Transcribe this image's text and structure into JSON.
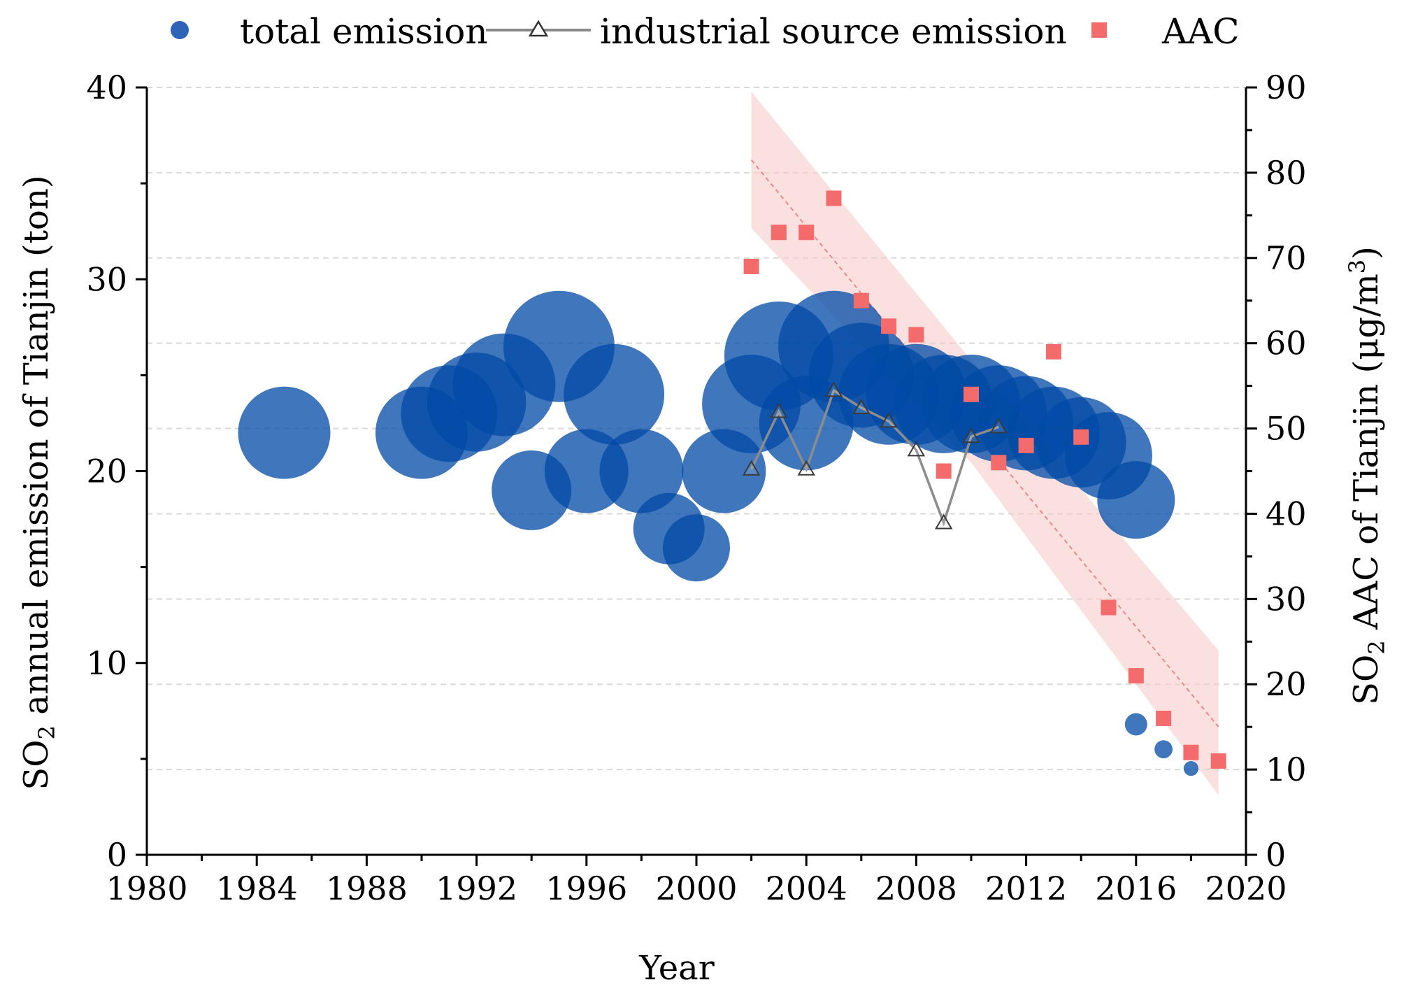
{
  "chart_data": {
    "type": "scatter",
    "xlabel": "Year",
    "ylabel_left": {
      "main": "SO",
      "sub": "2",
      "rest": "  annual emission of Tianjin (ton)"
    },
    "ylabel_right": {
      "main": "SO",
      "sub": "2",
      "mid": " AAC of Tianjin (μg/m",
      "sup": "3",
      "end": ")"
    },
    "xlim": [
      1980,
      2020
    ],
    "ylim_left": [
      0,
      40
    ],
    "ylim_right": [
      0,
      90
    ],
    "x_ticks": [
      1980,
      1984,
      1988,
      1992,
      1996,
      2000,
      2004,
      2008,
      2012,
      2016,
      2020
    ],
    "y_ticks_left": [
      0,
      10,
      20,
      30,
      40
    ],
    "y_ticks_right": [
      0,
      10,
      20,
      30,
      40,
      50,
      60,
      70,
      80,
      90
    ],
    "legend": [
      {
        "label": "total emission",
        "symbol": "circle",
        "color": "#2e64b7"
      },
      {
        "label": "industrial source emission",
        "symbol": "triangle-line",
        "color": "#888888"
      },
      {
        "label": "AAC",
        "symbol": "square",
        "color": "#f36b6b"
      }
    ],
    "series": [
      {
        "name": "total emission",
        "axis": "left",
        "points": [
          {
            "x": 1985,
            "y": 22.0
          },
          {
            "x": 1990,
            "y": 22.0
          },
          {
            "x": 1991,
            "y": 23.0
          },
          {
            "x": 1992,
            "y": 23.6
          },
          {
            "x": 1993,
            "y": 24.5
          },
          {
            "x": 1994,
            "y": 19.0
          },
          {
            "x": 1995,
            "y": 26.5
          },
          {
            "x": 1996,
            "y": 20.0
          },
          {
            "x": 1997,
            "y": 24.0
          },
          {
            "x": 1998,
            "y": 20.0
          },
          {
            "x": 1999,
            "y": 17.0
          },
          {
            "x": 2000,
            "y": 16.0
          },
          {
            "x": 2001,
            "y": 20.0
          },
          {
            "x": 2002,
            "y": 23.5
          },
          {
            "x": 2003,
            "y": 26.0
          },
          {
            "x": 2004,
            "y": 22.5
          },
          {
            "x": 2005,
            "y": 26.5
          },
          {
            "x": 2006,
            "y": 25.0
          },
          {
            "x": 2007,
            "y": 24.0
          },
          {
            "x": 2008,
            "y": 24.0
          },
          {
            "x": 2009,
            "y": 23.5
          },
          {
            "x": 2010,
            "y": 23.5
          },
          {
            "x": 2011,
            "y": 23.0
          },
          {
            "x": 2012,
            "y": 22.5
          },
          {
            "x": 2013,
            "y": 22.0
          },
          {
            "x": 2014,
            "y": 21.5
          },
          {
            "x": 2015,
            "y": 20.8
          },
          {
            "x": 2016,
            "y": 18.5
          },
          {
            "x": 2016,
            "y": 6.8
          },
          {
            "x": 2017,
            "y": 5.5
          },
          {
            "x": 2018,
            "y": 4.5
          }
        ]
      },
      {
        "name": "industrial source emission",
        "axis": "left",
        "points": [
          {
            "x": 2002,
            "y": 20.1
          },
          {
            "x": 2003,
            "y": 23.1
          },
          {
            "x": 2004,
            "y": 20.1
          },
          {
            "x": 2005,
            "y": 24.2
          },
          {
            "x": 2006,
            "y": 23.3
          },
          {
            "x": 2007,
            "y": 22.6
          },
          {
            "x": 2008,
            "y": 21.1
          },
          {
            "x": 2009,
            "y": 17.3
          },
          {
            "x": 2010,
            "y": 21.8
          },
          {
            "x": 2011,
            "y": 22.3
          }
        ]
      },
      {
        "name": "AAC",
        "axis": "right",
        "points": [
          {
            "x": 2002,
            "y": 69
          },
          {
            "x": 2003,
            "y": 73
          },
          {
            "x": 2004,
            "y": 73
          },
          {
            "x": 2005,
            "y": 77
          },
          {
            "x": 2006,
            "y": 65
          },
          {
            "x": 2007,
            "y": 62
          },
          {
            "x": 2008,
            "y": 61
          },
          {
            "x": 2009,
            "y": 45
          },
          {
            "x": 2010,
            "y": 54
          },
          {
            "x": 2011,
            "y": 46
          },
          {
            "x": 2012,
            "y": 48
          },
          {
            "x": 2013,
            "y": 59
          },
          {
            "x": 2014,
            "y": 49
          },
          {
            "x": 2015,
            "y": 29
          },
          {
            "x": 2016,
            "y": 21
          },
          {
            "x": 2017,
            "y": 16
          },
          {
            "x": 2018,
            "y": 12
          },
          {
            "x": 2019,
            "y": 11
          }
        ]
      }
    ],
    "trend": {
      "axis": "right",
      "line": [
        {
          "x": 2002,
          "y": 81.5
        },
        {
          "x": 2019,
          "y": 15
        }
      ],
      "band_upper": [
        {
          "x": 2002,
          "y": 89.5
        },
        {
          "x": 2010,
          "y": 58
        },
        {
          "x": 2019,
          "y": 24
        }
      ],
      "band_lower": [
        {
          "x": 2002,
          "y": 73.5
        },
        {
          "x": 2010,
          "y": 46
        },
        {
          "x": 2019,
          "y": 7
        }
      ]
    },
    "grid": true
  }
}
